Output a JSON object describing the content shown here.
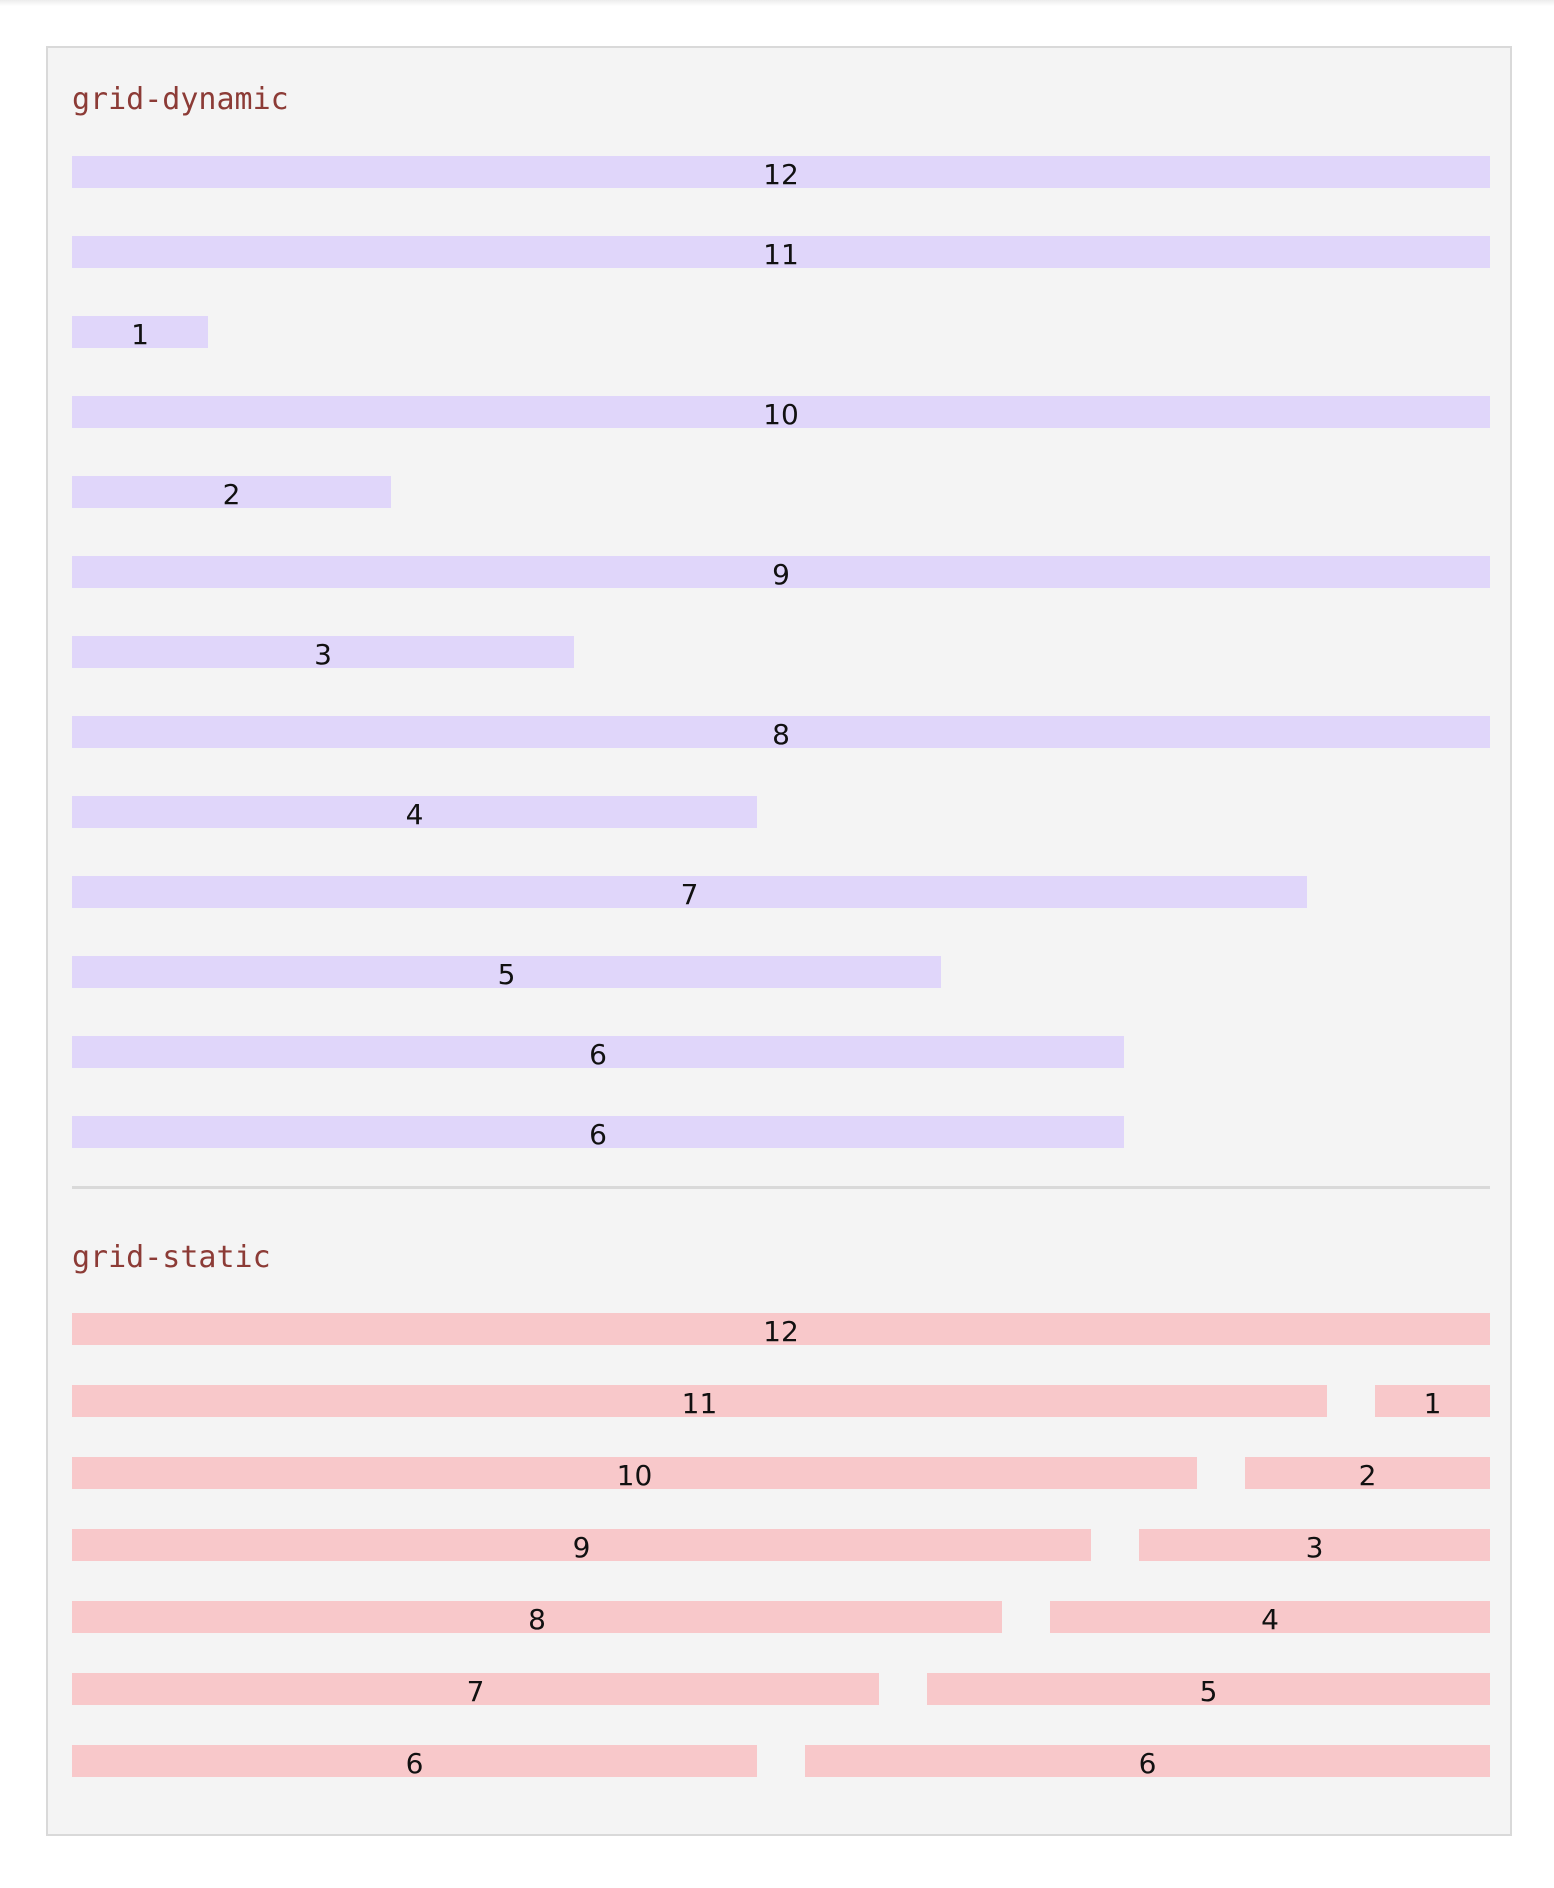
{
  "sections": {
    "dynamic": {
      "title": "grid-dynamic",
      "color": "#e0d6fa",
      "items": [
        "12",
        "11",
        "1",
        "10",
        "2",
        "9",
        "3",
        "8",
        "4",
        "7",
        "5",
        "6",
        "6"
      ]
    },
    "static": {
      "title": "grid-static",
      "color": "#f8c8ca",
      "rows": [
        [
          "12"
        ],
        [
          "11",
          "1"
        ],
        [
          "10",
          "2"
        ],
        [
          "9",
          "3"
        ],
        [
          "8",
          "4"
        ],
        [
          "7",
          "5"
        ],
        [
          "6",
          "6"
        ]
      ]
    }
  }
}
